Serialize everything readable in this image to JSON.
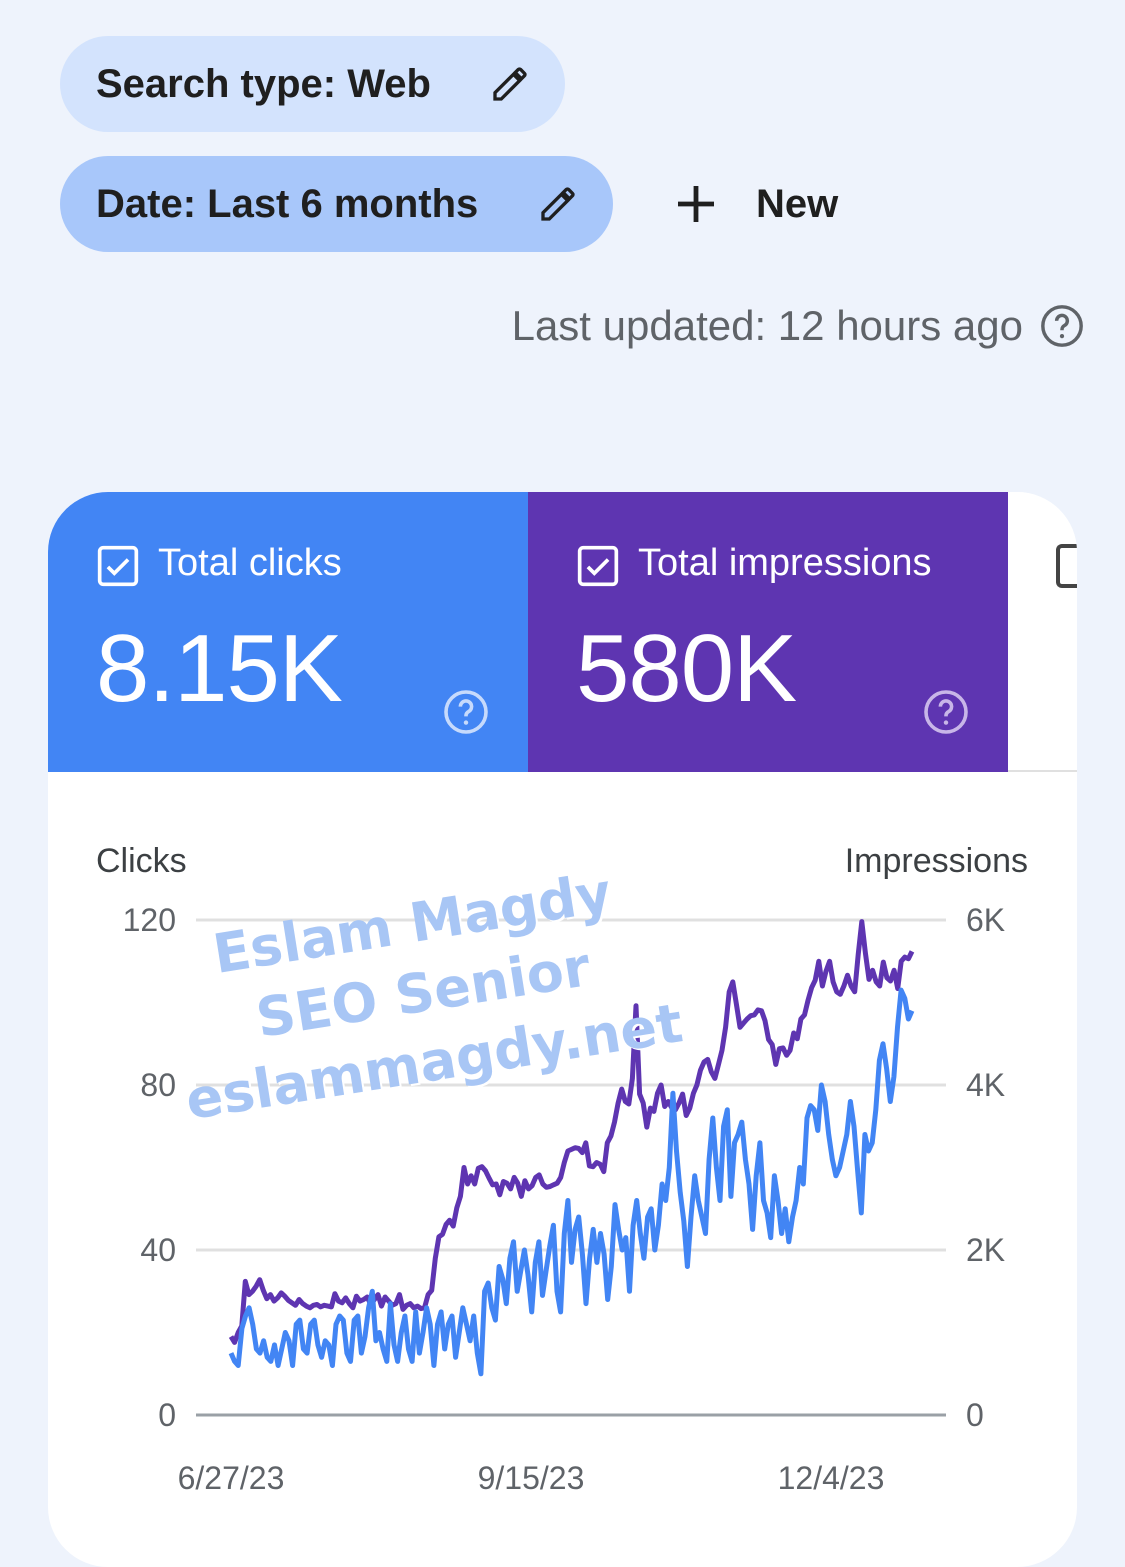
{
  "filters": {
    "search_type": "Search type: Web",
    "date": "Date: Last 6 months",
    "new_label": "New"
  },
  "last_updated": "Last updated: 12 hours ago",
  "metrics": [
    {
      "label": "Total clicks",
      "value": "8.15K",
      "selected": true,
      "color": "#4285f4"
    },
    {
      "label": "Total impressions",
      "value": "580K",
      "selected": true,
      "color": "#5e35b1"
    }
  ],
  "watermark": [
    "Eslam Magdy",
    "SEO Senior",
    "eslammagdy.net"
  ],
  "chart_data": {
    "type": "line",
    "ylabel_left": "Clicks",
    "ylabel_right": "Impressions",
    "y_left_ticks": [
      "0",
      "40",
      "80",
      "120"
    ],
    "y_right_ticks": [
      "0",
      "2K",
      "4K",
      "6K"
    ],
    "ylim_left": [
      0,
      120
    ],
    "ylim_right": [
      0,
      6000
    ],
    "x_tick_labels": [
      "6/27/23",
      "9/15/23",
      "12/4/23"
    ],
    "x_range": [
      "6/27/23",
      "12/25/23"
    ],
    "grid": true,
    "series": [
      {
        "name": "Clicks",
        "axis": "left",
        "color": "#4285f4",
        "values": [
          15,
          13,
          12,
          21,
          24,
          26,
          22,
          16,
          15,
          18,
          14,
          13,
          17,
          12,
          16,
          20,
          18,
          12,
          22,
          23,
          16,
          15,
          22,
          23,
          17,
          14,
          18,
          17,
          12,
          22,
          24,
          23,
          15,
          13,
          23,
          24,
          15,
          19,
          26,
          30,
          18,
          20,
          16,
          13,
          27,
          17,
          13,
          20,
          24,
          16,
          13,
          25,
          15,
          20,
          26,
          22,
          12,
          22,
          25,
          16,
          22,
          24,
          14,
          20,
          26,
          22,
          18,
          24,
          15,
          10,
          30,
          32,
          26,
          23,
          36,
          33,
          27,
          38,
          42,
          30,
          35,
          40,
          34,
          25,
          37,
          42,
          29,
          35,
          41,
          46,
          30,
          25,
          44,
          52,
          37,
          45,
          48,
          39,
          27,
          38,
          45,
          37,
          44,
          39,
          28,
          36,
          51,
          45,
          40,
          43,
          30,
          46,
          52,
          44,
          38,
          48,
          50,
          40,
          46,
          56,
          52,
          60,
          78,
          64,
          54,
          47,
          36,
          48,
          58,
          52,
          48,
          44,
          62,
          72,
          60,
          52,
          70,
          74,
          53,
          66,
          68,
          71,
          62,
          56,
          45,
          58,
          66,
          52,
          49,
          43,
          58,
          52,
          44,
          50,
          42,
          48,
          52,
          60,
          56,
          72,
          75,
          74,
          69,
          80,
          76,
          68,
          62,
          58,
          60,
          64,
          68,
          76,
          70,
          59,
          49,
          68,
          64,
          66,
          74,
          86,
          90,
          84,
          76,
          82,
          94,
          103,
          101,
          96,
          98
        ]
      },
      {
        "name": "Impressions",
        "axis": "right",
        "color": "#5e35b1",
        "values": [
          950,
          880,
          1000,
          1080,
          1620,
          1460,
          1500,
          1560,
          1640,
          1510,
          1410,
          1460,
          1380,
          1420,
          1480,
          1440,
          1390,
          1360,
          1330,
          1400,
          1350,
          1320,
          1300,
          1330,
          1340,
          1310,
          1330,
          1320,
          1310,
          1470,
          1380,
          1360,
          1420,
          1350,
          1300,
          1440,
          1380,
          1400,
          1430,
          1340,
          1400,
          1460,
          1320,
          1430,
          1380,
          1330,
          1350,
          1460,
          1280,
          1330,
          1350,
          1300,
          1320,
          1290,
          1300,
          1460,
          1510,
          1900,
          2160,
          2190,
          2310,
          2360,
          2290,
          2510,
          2650,
          3000,
          2800,
          2900,
          2800,
          2990,
          3010,
          2960,
          2870,
          2790,
          2800,
          2670,
          2830,
          2810,
          2740,
          2880,
          2810,
          2650,
          2840,
          2740,
          2780,
          2880,
          2910,
          2800,
          2760,
          2770,
          2790,
          2810,
          2880,
          3060,
          3200,
          3220,
          3240,
          3230,
          3180,
          3300,
          3020,
          3010,
          3060,
          3040,
          2950,
          3300,
          3380,
          3550,
          3780,
          3950,
          3800,
          3770,
          4080,
          4960,
          3890,
          3780,
          3490,
          3720,
          3680,
          3900,
          4000,
          3740,
          3800,
          3720,
          3700,
          3780,
          3890,
          3630,
          3720,
          3900,
          4000,
          4180,
          4280,
          4310,
          4160,
          4080,
          4250,
          4420,
          4700,
          5130,
          5250,
          4980,
          4700,
          4750,
          4800,
          4840,
          4850,
          4910,
          4900,
          4780,
          4550,
          4490,
          4250,
          4440,
          4450,
          4360,
          4420,
          4630,
          4560,
          4800,
          4850,
          5030,
          5180,
          5270,
          5500,
          5200,
          5380,
          5500,
          5250,
          5130,
          5100,
          5200,
          5330,
          5200,
          5130,
          5580,
          5980,
          5600,
          5280,
          5390,
          5250,
          5200,
          5490,
          5300,
          5260,
          5390,
          5170,
          5500,
          5550,
          5530,
          5620
        ]
      }
    ]
  }
}
